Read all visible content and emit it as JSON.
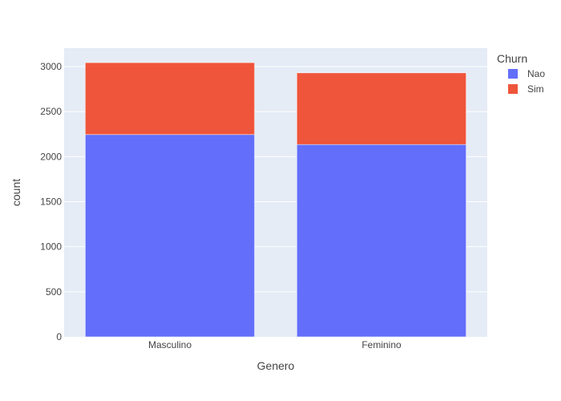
{
  "chart_data": {
    "type": "bar",
    "stacked": true,
    "categories": [
      "Masculino",
      "Feminino"
    ],
    "series": [
      {
        "name": "Nao",
        "values": [
          2245,
          2135
        ],
        "color": "#636efa"
      },
      {
        "name": "Sim",
        "values": [
          799,
          795
        ],
        "color": "#ef553b"
      }
    ],
    "xlabel": "Genero",
    "ylabel": "count",
    "ylim": [
      0,
      3205
    ],
    "yticks": [
      0,
      500,
      1000,
      1500,
      2000,
      2500,
      3000
    ],
    "grid": true,
    "legend": {
      "title": "Churn",
      "position": "top-right"
    },
    "plot_background": "#e5ecf6",
    "grid_color": "#ffffff"
  }
}
